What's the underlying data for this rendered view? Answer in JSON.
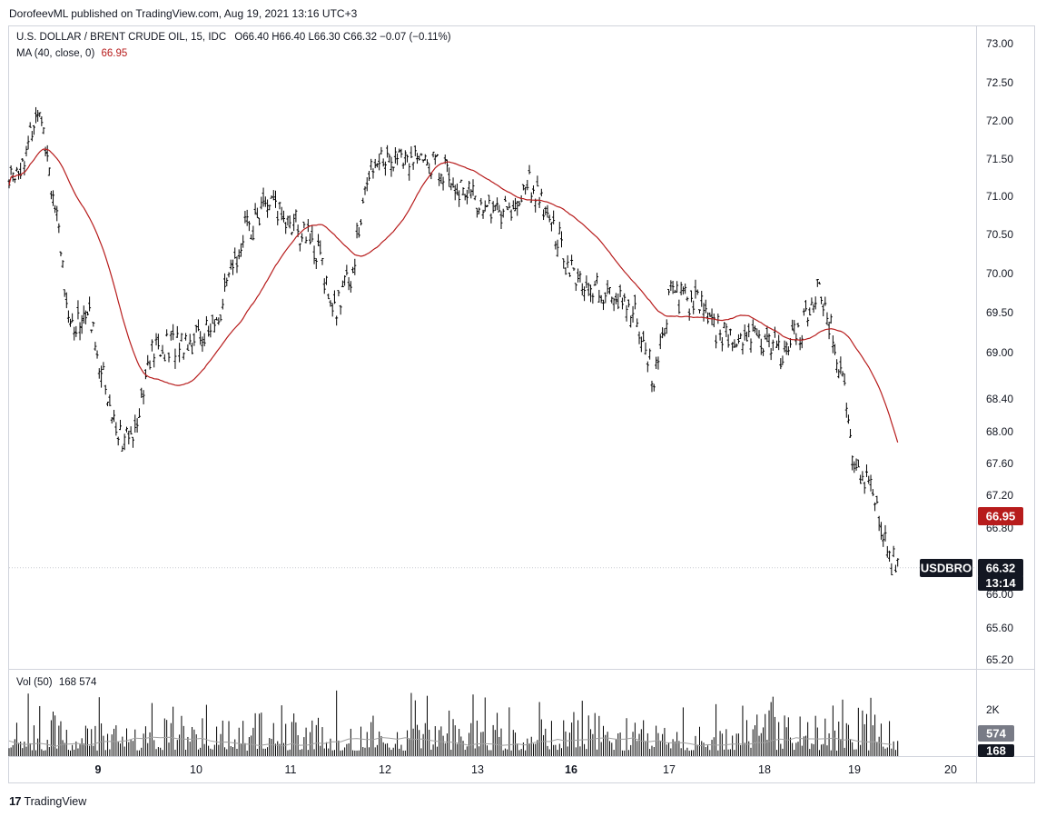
{
  "published_line": "DorofeevML published on TradingView.com, Aug 19, 2021 13:16 UTC+3",
  "legend": {
    "symbol_label": "U.S. DOLLAR / BRENT CRUDE OIL, 15, IDC",
    "ohlc": "O66.40  H66.40  L66.30  C66.32  −0.07 (−0.11%)",
    "ma_label": "MA (40, close, 0)",
    "ma_value": "66.95",
    "vol_label": "Vol (50)",
    "vol_values": "168  574"
  },
  "footer": {
    "brand": "TradingView",
    "brand_mark": "17"
  },
  "colors": {
    "candles": "#000000",
    "ma_line": "#b71c1c",
    "vol_ma": "#a0a0a0",
    "badge_dark": "#131722",
    "badge_red": "#b71c1c"
  },
  "chart_data": [
    {
      "type": "line",
      "title": "U.S. DOLLAR / BRENT CRUDE OIL, 15, IDC",
      "y_ticks": [
        "73.00",
        "72.50",
        "72.00",
        "71.50",
        "71.00",
        "70.50",
        "70.00",
        "69.50",
        "69.00",
        "68.40",
        "68.00",
        "67.60",
        "67.20",
        "66.80",
        "66.00",
        "65.60",
        "65.20"
      ],
      "ylim": [
        65.0,
        73.2
      ],
      "x_ticks": [
        "9",
        "10",
        "11",
        "12",
        "13",
        "16",
        "17",
        "18",
        "19",
        "20"
      ],
      "price_path_approx": [
        {
          "x": 8.0,
          "y": 71.2
        },
        {
          "x": 8.2,
          "y": 71.6
        },
        {
          "x": 8.35,
          "y": 72.3
        },
        {
          "x": 8.55,
          "y": 70.5
        },
        {
          "x": 8.7,
          "y": 69.3
        },
        {
          "x": 8.9,
          "y": 69.5
        },
        {
          "x": 9.15,
          "y": 68.2
        },
        {
          "x": 9.3,
          "y": 67.8
        },
        {
          "x": 9.55,
          "y": 69.0
        },
        {
          "x": 10.2,
          "y": 69.3
        },
        {
          "x": 10.5,
          "y": 70.5
        },
        {
          "x": 10.75,
          "y": 70.9
        },
        {
          "x": 11.0,
          "y": 70.7
        },
        {
          "x": 11.3,
          "y": 70.3
        },
        {
          "x": 11.45,
          "y": 69.5
        },
        {
          "x": 11.65,
          "y": 70.0
        },
        {
          "x": 11.85,
          "y": 71.5
        },
        {
          "x": 12.3,
          "y": 71.5
        },
        {
          "x": 12.6,
          "y": 71.4
        },
        {
          "x": 13.0,
          "y": 70.9
        },
        {
          "x": 13.35,
          "y": 70.8
        },
        {
          "x": 13.55,
          "y": 71.2
        },
        {
          "x": 13.8,
          "y": 70.6
        },
        {
          "x": 14.05,
          "y": 69.9
        },
        {
          "x": 14.4,
          "y": 69.7
        },
        {
          "x": 14.65,
          "y": 69.5
        },
        {
          "x": 14.85,
          "y": 68.6
        },
        {
          "x": 15.0,
          "y": 69.7
        },
        {
          "x": 15.35,
          "y": 69.6
        },
        {
          "x": 15.55,
          "y": 69.2
        },
        {
          "x": 15.85,
          "y": 69.2
        },
        {
          "x": 16.25,
          "y": 69.0
        },
        {
          "x": 16.5,
          "y": 69.5
        },
        {
          "x": 16.6,
          "y": 69.9
        },
        {
          "x": 16.75,
          "y": 69.3
        },
        {
          "x": 16.9,
          "y": 68.4
        },
        {
          "x": 17.0,
          "y": 67.6
        },
        {
          "x": 17.2,
          "y": 67.3
        },
        {
          "x": 17.35,
          "y": 66.5
        },
        {
          "x": 17.45,
          "y": 66.32
        }
      ],
      "last_price": "66.32",
      "countdown": "13:14",
      "symbol_badge": "USDBRO",
      "series": [
        {
          "name": "MA (40, close, 0)",
          "last_value": "66.95"
        }
      ]
    },
    {
      "type": "bar",
      "title": "Vol (50)",
      "y_ticks": [
        "2K"
      ],
      "badges": [
        "574",
        "168"
      ]
    }
  ]
}
